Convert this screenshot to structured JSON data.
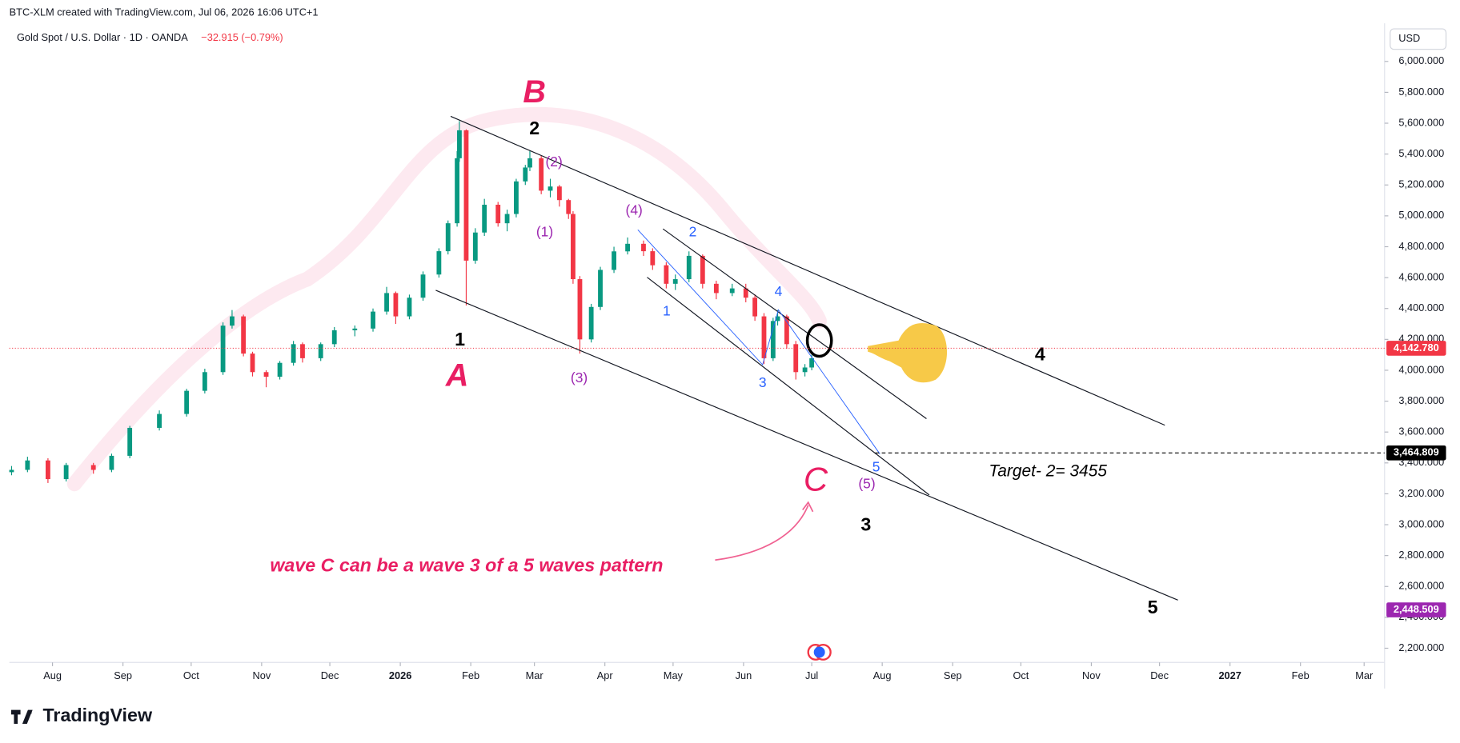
{
  "header": {
    "watermark": "BTC-XLM created with TradingView.com, Jul 06, 2026 16:06 UTC+1",
    "symbol": "Gold Spot / U.S. Dollar · 1D · OANDA",
    "change": "−32.915 (−0.79%)",
    "currency": "USD"
  },
  "chart_data": {
    "type": "candlestick",
    "x": [
      -18,
      -11,
      -2,
      6,
      18,
      26,
      34,
      47,
      59,
      67,
      75,
      79,
      84,
      88,
      94,
      100,
      106,
      110,
      118,
      124,
      133,
      141,
      147,
      151,
      157,
      163,
      170,
      174,
      178,
      179,
      182,
      186,
      190,
      196,
      200,
      204,
      208,
      210,
      215,
      219,
      223,
      227,
      229,
      232,
      237,
      241,
      247,
      253,
      260,
      264,
      270,
      274,
      280,
      286,
      292,
      299,
      305,
      309,
      313,
      317,
      319,
      323,
      327,
      331,
      334
    ],
    "open": [
      3340,
      3355,
      3416,
      3295,
      3386,
      3355,
      3446,
      3627,
      3717,
      3867,
      3988,
      4289,
      4349,
      4108,
      3988,
      3958,
      4048,
      4169,
      4078,
      4169,
      4259,
      4270,
      4380,
      4500,
      4349,
      4470,
      4620,
      4771,
      4952,
      5373,
      5554,
      4710,
      4892,
      5072,
      4952,
      5012,
      5223,
      5313,
      5373,
      5163,
      5190,
      5102,
      5012,
      4590,
      4200,
      4410,
      4650,
      4770,
      4819,
      4771,
      4680,
      4560,
      4590,
      4741,
      4560,
      4500,
      4530,
      4470,
      4349,
      4078,
      4319,
      4349,
      4169,
      3988,
      4018
    ],
    "high": [
      3380,
      3440,
      3430,
      3400,
      3400,
      3460,
      3640,
      3740,
      3880,
      4010,
      4310,
      4390,
      4360,
      4120,
      4000,
      4060,
      4190,
      4180,
      4180,
      4280,
      4290,
      4400,
      4540,
      4510,
      4490,
      4640,
      4790,
      4970,
      5420,
      5614,
      5560,
      4920,
      5110,
      5090,
      5040,
      5240,
      5330,
      5420,
      5390,
      5240,
      5200,
      5110,
      5030,
      4610,
      4430,
      4670,
      4800,
      4860,
      4840,
      4790,
      4700,
      4620,
      4770,
      4750,
      4580,
      4560,
      4560,
      4490,
      4370,
      4340,
      4390,
      4360,
      4190,
      4040,
      4100
    ],
    "low": [
      3320,
      3340,
      3270,
      3280,
      3330,
      3340,
      3430,
      3610,
      3700,
      3850,
      3970,
      4270,
      4090,
      3960,
      3890,
      3940,
      4030,
      4050,
      4060,
      4150,
      4220,
      4250,
      4360,
      4300,
      4330,
      4450,
      4600,
      4750,
      4930,
      5350,
      4420,
      4690,
      4870,
      4930,
      4900,
      4990,
      5200,
      5290,
      5140,
      5120,
      5060,
      4980,
      4560,
      4108,
      4180,
      4390,
      4630,
      4750,
      4740,
      4650,
      4530,
      4520,
      4570,
      4530,
      4460,
      4480,
      4440,
      4320,
      4040,
      4060,
      4290,
      4140,
      3940,
      3960,
      4000
    ],
    "close": [
      3355,
      3416,
      3295,
      3386,
      3355,
      3446,
      3627,
      3717,
      3867,
      3988,
      4289,
      4349,
      4108,
      3988,
      3958,
      4048,
      4169,
      4078,
      4169,
      4259,
      4270,
      4380,
      4500,
      4349,
      4470,
      4620,
      4771,
      4952,
      5373,
      5554,
      4710,
      4892,
      5072,
      4952,
      5012,
      5223,
      5313,
      5373,
      5163,
      5190,
      5102,
      5012,
      4590,
      4200,
      4410,
      4650,
      4770,
      4819,
      4771,
      4680,
      4560,
      4590,
      4741,
      4560,
      4500,
      4530,
      4470,
      4349,
      4078,
      4319,
      4349,
      4169,
      3988,
      4018,
      4078
    ],
    "up_color": "#089981",
    "down_color": "#f23645",
    "xlim": [
      -19,
      586
    ],
    "xticks": [
      {
        "value": 0,
        "label": "Aug"
      },
      {
        "value": 31,
        "label": "Sep"
      },
      {
        "value": 61,
        "label": "Oct"
      },
      {
        "value": 92,
        "label": "Nov"
      },
      {
        "value": 122,
        "label": "Dec"
      },
      {
        "value": 153,
        "label": "2026"
      },
      {
        "value": 184,
        "label": "Feb"
      },
      {
        "value": 212,
        "label": "Mar"
      },
      {
        "value": 243,
        "label": "Apr"
      },
      {
        "value": 273,
        "label": "May"
      },
      {
        "value": 304,
        "label": "Jun"
      },
      {
        "value": 334,
        "label": "Jul"
      },
      {
        "value": 365,
        "label": "Aug"
      },
      {
        "value": 396,
        "label": "Sep"
      },
      {
        "value": 426,
        "label": "Oct"
      },
      {
        "value": 457,
        "label": "Nov"
      },
      {
        "value": 487,
        "label": "Dec"
      },
      {
        "value": 518,
        "label": "2027"
      },
      {
        "value": 549,
        "label": "Feb"
      },
      {
        "value": 577,
        "label": "Mar"
      }
    ],
    "ylim": [
      2108,
      6217
    ],
    "yticks": [
      {
        "value": 2200,
        "label": "2,200.000"
      },
      {
        "value": 2400,
        "label": "2,400.000"
      },
      {
        "value": 2600,
        "label": "2,600.000"
      },
      {
        "value": 2800,
        "label": "2,800.000"
      },
      {
        "value": 3000,
        "label": "3,000.000"
      },
      {
        "value": 3200,
        "label": "3,200.000"
      },
      {
        "value": 3400,
        "label": "3,400.000"
      },
      {
        "value": 3600,
        "label": "3,600.000"
      },
      {
        "value": 3800,
        "label": "3,800.000"
      },
      {
        "value": 4000,
        "label": "4,000.000"
      },
      {
        "value": 4200,
        "label": "4,200.000"
      },
      {
        "value": 4400,
        "label": "4,400.000"
      },
      {
        "value": 4600,
        "label": "4,600.000"
      },
      {
        "value": 4800,
        "label": "4,800.000"
      },
      {
        "value": 5000,
        "label": "5,000.000"
      },
      {
        "value": 5200,
        "label": "5,200.000"
      },
      {
        "value": 5400,
        "label": "5,400.000"
      },
      {
        "value": 5600,
        "label": "5,600.000"
      },
      {
        "value": 5800,
        "label": "5,800.000"
      },
      {
        "value": 6000,
        "label": "6,000.000"
      }
    ],
    "price_lines": [
      {
        "value": 4142.78,
        "label": "4,142.780",
        "color": "#f23645"
      },
      {
        "value": 3464.809,
        "label": "3,464.809",
        "color": "#000000"
      },
      {
        "value": 2448.509,
        "label": "2,448.509",
        "color": "#9c27b0"
      }
    ]
  },
  "annotations": [
    "B",
    "2",
    "(2)",
    "(4)",
    "2",
    "(1)",
    "1",
    "4",
    "1",
    "A",
    "(3)",
    "3",
    "4",
    "5",
    "(5)",
    "C",
    "3",
    "5",
    "Target- 2= 3455",
    "wave C can be a wave 3 of a 5 waves pattern"
  ],
  "footer": {
    "brand": "TradingView"
  }
}
